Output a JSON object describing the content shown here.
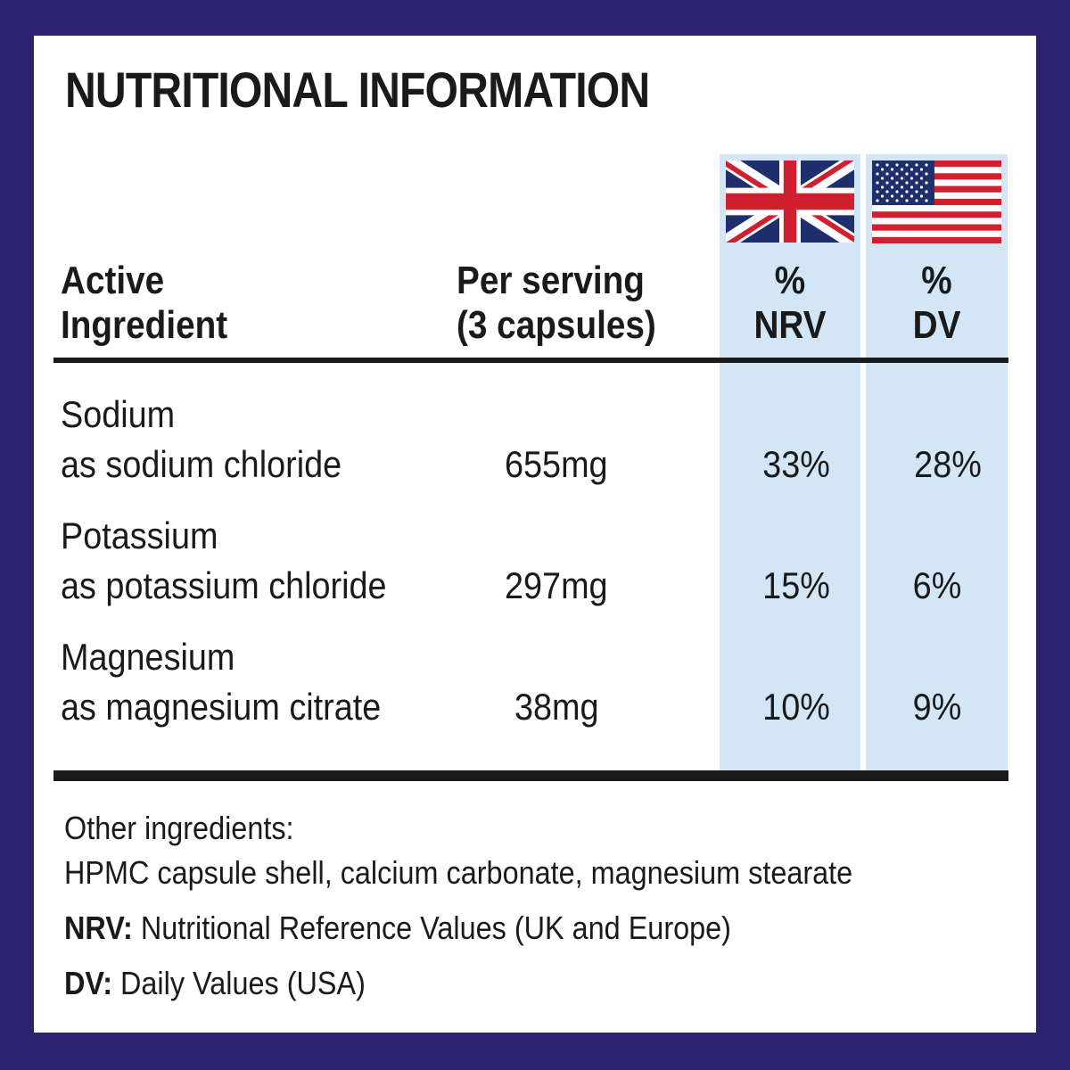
{
  "title": "NUTRITIONAL INFORMATION",
  "header": {
    "ingredient_line1": "Active",
    "ingredient_line2": "Ingredient",
    "serving_line1": "Per serving",
    "serving_line2": "(3 capsules)",
    "nrv_line1": "%",
    "nrv_line2": "NRV",
    "dv_line1": "%",
    "dv_line2": "DV"
  },
  "flags": {
    "nrv": "uk-flag-icon",
    "dv": "us-flag-icon"
  },
  "rows": [
    {
      "name": "Sodium",
      "source": "as sodium chloride",
      "amount": "655mg",
      "nrv": "33%",
      "dv": "28%"
    },
    {
      "name": "Potassium",
      "source": "as potassium chloride",
      "amount": "297mg",
      "nrv": "15%",
      "dv": "6%"
    },
    {
      "name": "Magnesium",
      "source": "as magnesium citrate",
      "amount": "38mg",
      "nrv": "10%",
      "dv": "9%"
    }
  ],
  "footer": {
    "other_label": "Other ingredients:",
    "other_value": "HPMC capsule shell, calcium carbonate, magnesium stearate",
    "nrv_label": "NRV:",
    "nrv_text": " Nutritional Reference Values (UK and Europe)",
    "dv_label": "DV:",
    "dv_text": " Daily Values (USA)"
  },
  "colors": {
    "border": "#2b2370",
    "column_highlight": "#d2e6f6",
    "text": "#1a1a1a"
  }
}
